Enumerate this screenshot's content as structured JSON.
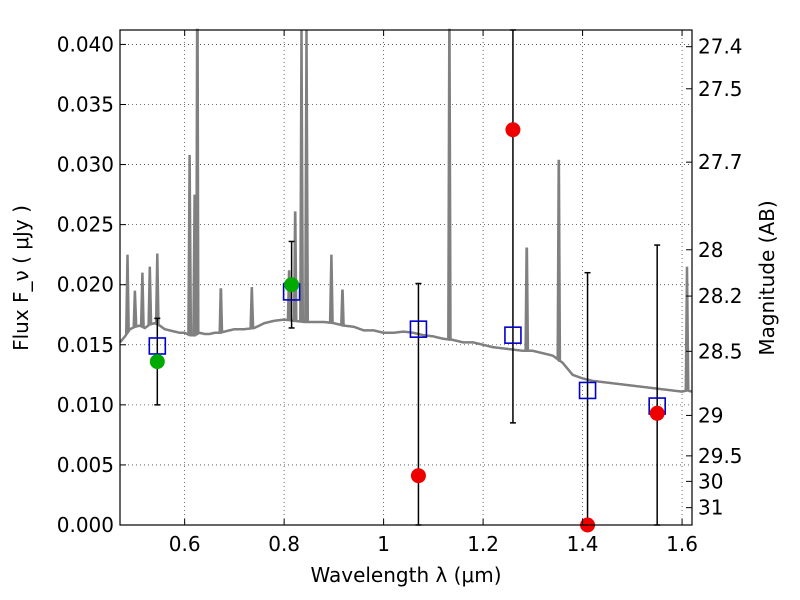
{
  "chart_data": {
    "type": "scatter",
    "xlabel": "Wavelength  λ (μm)",
    "ylabel": "Flux  F_ν  ( μJy )",
    "ylabel_right": "Magnitude (AB)",
    "xlim": [
      0.47,
      1.62
    ],
    "ylim": [
      0.0,
      0.0412
    ],
    "grid": true,
    "x_ticks": [
      0.6,
      0.8,
      1.0,
      1.2,
      1.4,
      1.6
    ],
    "x_tick_labels": [
      "0.6",
      "0.8",
      "1",
      "1.2",
      "1.4",
      "1.6"
    ],
    "y_ticks": [
      0.0,
      0.005,
      0.01,
      0.015,
      0.02,
      0.025,
      0.03,
      0.035,
      0.04
    ],
    "y_tick_labels": [
      "0.000",
      "0.005",
      "0.010",
      "0.015",
      "0.020",
      "0.025",
      "0.030",
      "0.035",
      "0.040"
    ],
    "mag_ticks": [
      27.4,
      27.5,
      27.7,
      28,
      28.2,
      28.5,
      29,
      29.5,
      30,
      31
    ],
    "mag_tick_labels": [
      "27.4",
      "27.5",
      "27.7",
      "28",
      "28.2",
      "28.5",
      "29",
      "29.5",
      "30",
      "31"
    ],
    "colors": {
      "model": "#808080",
      "detections": "#00aa00",
      "low_sn": "#ee0000",
      "model_phot": "#0000cc",
      "errorbar": "#000000"
    },
    "model_spectrum": {
      "x": [
        0.47,
        0.48,
        0.49,
        0.5,
        0.51,
        0.52,
        0.53,
        0.54,
        0.55,
        0.56,
        0.57,
        0.58,
        0.59,
        0.6,
        0.61,
        0.62,
        0.63,
        0.64,
        0.65,
        0.66,
        0.67,
        0.68,
        0.69,
        0.7,
        0.72,
        0.74,
        0.76,
        0.78,
        0.8,
        0.82,
        0.84,
        0.86,
        0.88,
        0.9,
        0.92,
        0.94,
        0.96,
        0.98,
        1.0,
        1.02,
        1.04,
        1.06,
        1.08,
        1.1,
        1.12,
        1.14,
        1.16,
        1.18,
        1.2,
        1.22,
        1.24,
        1.26,
        1.28,
        1.3,
        1.32,
        1.34,
        1.36,
        1.38,
        1.4,
        1.42,
        1.44,
        1.46,
        1.48,
        1.5,
        1.52,
        1.54,
        1.56,
        1.58,
        1.6,
        1.61,
        1.62
      ],
      "y": [
        0.0152,
        0.0157,
        0.0163,
        0.0165,
        0.0166,
        0.0164,
        0.0167,
        0.0168,
        0.0166,
        0.0163,
        0.0162,
        0.0161,
        0.016,
        0.016,
        0.0158,
        0.0158,
        0.016,
        0.0159,
        0.0159,
        0.016,
        0.016,
        0.0161,
        0.0162,
        0.0163,
        0.0163,
        0.0164,
        0.0168,
        0.017,
        0.0171,
        0.017,
        0.0169,
        0.0169,
        0.0169,
        0.0168,
        0.0166,
        0.0165,
        0.0162,
        0.0162,
        0.016,
        0.016,
        0.0161,
        0.016,
        0.0158,
        0.0157,
        0.0155,
        0.0154,
        0.0152,
        0.0152,
        0.015,
        0.0148,
        0.0147,
        0.0146,
        0.0145,
        0.0145,
        0.0143,
        0.0141,
        0.0135,
        0.0125,
        0.0122,
        0.012,
        0.0119,
        0.0118,
        0.0117,
        0.0116,
        0.0115,
        0.0114,
        0.0113,
        0.0112,
        0.0111,
        0.0112,
        0.0111
      ]
    },
    "model_lines": [
      {
        "x": 0.485,
        "peak": 0.0225
      },
      {
        "x": 0.5,
        "peak": 0.0195
      },
      {
        "x": 0.515,
        "peak": 0.021
      },
      {
        "x": 0.53,
        "peak": 0.0215
      },
      {
        "x": 0.545,
        "peak": 0.0226
      },
      {
        "x": 0.61,
        "peak": 0.0308
      },
      {
        "x": 0.62,
        "peak": 0.0275
      },
      {
        "x": 0.626,
        "peak": 0.0412
      },
      {
        "x": 0.673,
        "peak": 0.0196
      },
      {
        "x": 0.735,
        "peak": 0.0198
      },
      {
        "x": 0.81,
        "peak": 0.0212
      },
      {
        "x": 0.822,
        "peak": 0.026
      },
      {
        "x": 0.835,
        "peak": 0.0412
      },
      {
        "x": 0.845,
        "peak": 0.0412
      },
      {
        "x": 0.895,
        "peak": 0.0225
      },
      {
        "x": 0.917,
        "peak": 0.0195
      },
      {
        "x": 1.132,
        "peak": 0.0412
      },
      {
        "x": 1.288,
        "peak": 0.023
      },
      {
        "x": 1.352,
        "peak": 0.0303
      },
      {
        "x": 1.61,
        "peak": 0.0215
      }
    ],
    "detections": [
      {
        "x": 0.545,
        "y": 0.0136,
        "yerr": 0.0036
      },
      {
        "x": 0.815,
        "y": 0.02,
        "yerr": 0.0036
      }
    ],
    "low_sn": [
      {
        "x": 1.07,
        "y": 0.0041,
        "yerr": 0.016
      },
      {
        "x": 1.26,
        "y": 0.0329,
        "yerr": 0.0244
      },
      {
        "x": 1.41,
        "y": 0.0,
        "yerr": 0.021
      },
      {
        "x": 1.55,
        "y": 0.0093,
        "yerr": 0.014
      }
    ],
    "model_photometry": [
      {
        "x": 0.545,
        "y": 0.0149
      },
      {
        "x": 0.815,
        "y": 0.0194
      },
      {
        "x": 1.07,
        "y": 0.0163
      },
      {
        "x": 1.26,
        "y": 0.0158
      },
      {
        "x": 1.41,
        "y": 0.0112
      },
      {
        "x": 1.55,
        "y": 0.0099
      }
    ]
  }
}
